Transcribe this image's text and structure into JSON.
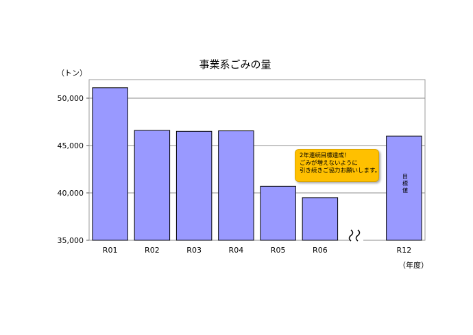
{
  "chart_data": {
    "type": "bar",
    "title": "事業系ごみの量",
    "ylabel": "（トン）",
    "xlabel": "（年度）",
    "categories": [
      "R01",
      "R02",
      "R03",
      "R04",
      "R05",
      "R06",
      "R12"
    ],
    "values": [
      51100,
      46600,
      46500,
      46550,
      40700,
      39500,
      46000
    ],
    "ylim": [
      35000,
      52000
    ],
    "yticks": [
      35000,
      40000,
      45000,
      50000
    ],
    "ytick_labels": [
      "35,000",
      "40,000",
      "45,000",
      "50,000"
    ],
    "grid": true,
    "axis_break": "between R06 and R12",
    "bar_color": "#9999ff",
    "bar_note": [
      "目",
      "標",
      "値"
    ],
    "annotation": {
      "lines": [
        "2年連続目標達成！",
        "ごみが増えないように",
        "引き続きご協力お願いします。"
      ],
      "color": "#ffc000"
    }
  }
}
